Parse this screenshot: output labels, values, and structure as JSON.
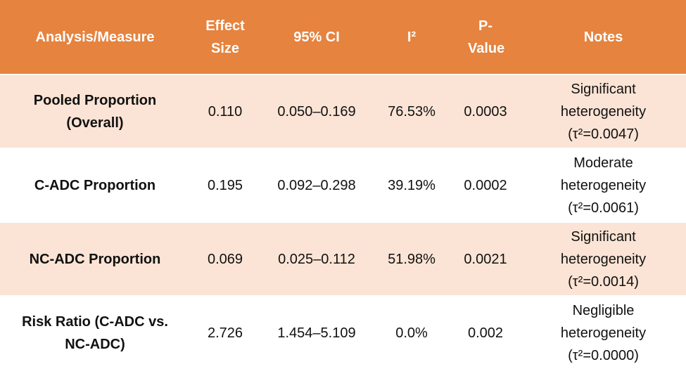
{
  "table": {
    "header": [
      "Analysis/Measure",
      "Effect Size",
      "95% CI",
      "I²",
      "P-Value",
      "Notes"
    ],
    "rows": [
      [
        "Pooled Proportion (Overall)",
        "0.110",
        "0.050–0.169",
        "76.53%",
        "0.0003",
        "Significant heterogeneity (τ²=0.0047)"
      ],
      [
        "C-ADC Proportion",
        "0.195",
        "0.092–0.298",
        "39.19%",
        "0.0002",
        "Moderate heterogeneity (τ²=0.0061)"
      ],
      [
        "NC-ADC Proportion",
        "0.069",
        "0.025–0.112",
        "51.98%",
        "0.0021",
        "Significant heterogeneity (τ²=0.0014)"
      ],
      [
        "Risk Ratio (C-ADC vs. NC-ADC)",
        "2.726",
        "1.454–5.109",
        "0.0%",
        "0.002",
        "Negligible heterogeneity (τ²=0.0000)"
      ]
    ]
  }
}
